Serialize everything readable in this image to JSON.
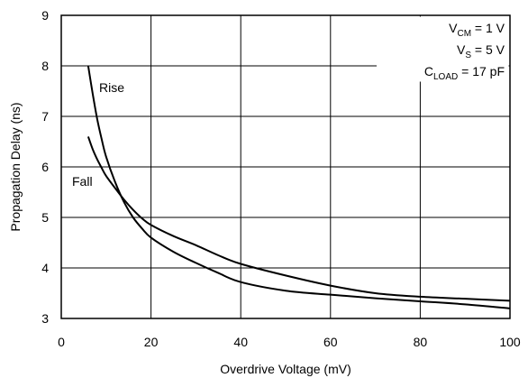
{
  "chart_data": {
    "type": "line",
    "title": "",
    "xlabel": "Overdrive Voltage (mV)",
    "ylabel": "Propagation Delay (ns)",
    "xlim": [
      0,
      100
    ],
    "ylim": [
      3,
      9
    ],
    "xticks": [
      0,
      20,
      40,
      60,
      80,
      100
    ],
    "yticks": [
      3,
      4,
      5,
      6,
      7,
      8,
      9
    ],
    "xtick_labels": [
      "0",
      "20",
      "40",
      "60",
      "80",
      "100"
    ],
    "ytick_labels": [
      "3",
      "4",
      "5",
      "6",
      "7",
      "8",
      "9"
    ],
    "grid": true,
    "series": [
      {
        "name": "Rise",
        "x": [
          6,
          7,
          8,
          9,
          10,
          12,
          14,
          16,
          18,
          20,
          25,
          30,
          35,
          40,
          50,
          60,
          70,
          80,
          90,
          100
        ],
        "y": [
          8.0,
          7.45,
          6.95,
          6.55,
          6.2,
          5.7,
          5.3,
          5.0,
          4.78,
          4.6,
          4.32,
          4.1,
          3.9,
          3.72,
          3.55,
          3.47,
          3.4,
          3.34,
          3.28,
          3.2
        ]
      },
      {
        "name": "Fall",
        "x": [
          6,
          7,
          8,
          9,
          10,
          12,
          14,
          16,
          18,
          20,
          25,
          30,
          35,
          40,
          50,
          60,
          70,
          80,
          90,
          100
        ],
        "y": [
          6.6,
          6.35,
          6.15,
          5.98,
          5.82,
          5.58,
          5.35,
          5.15,
          4.98,
          4.85,
          4.63,
          4.45,
          4.25,
          4.08,
          3.85,
          3.65,
          3.5,
          3.43,
          3.39,
          3.35
        ]
      }
    ],
    "annotations": {
      "vcm": {
        "main": "V",
        "sub": "CM",
        "rest": " = 1 V"
      },
      "vs": {
        "main": "V",
        "sub": "S",
        "rest": " = 5 V"
      },
      "cload": {
        "main": "C",
        "sub": "LOAD",
        "rest": " = 17 pF"
      }
    },
    "series_labels": {
      "rise": "Rise",
      "fall": "Fall"
    }
  }
}
